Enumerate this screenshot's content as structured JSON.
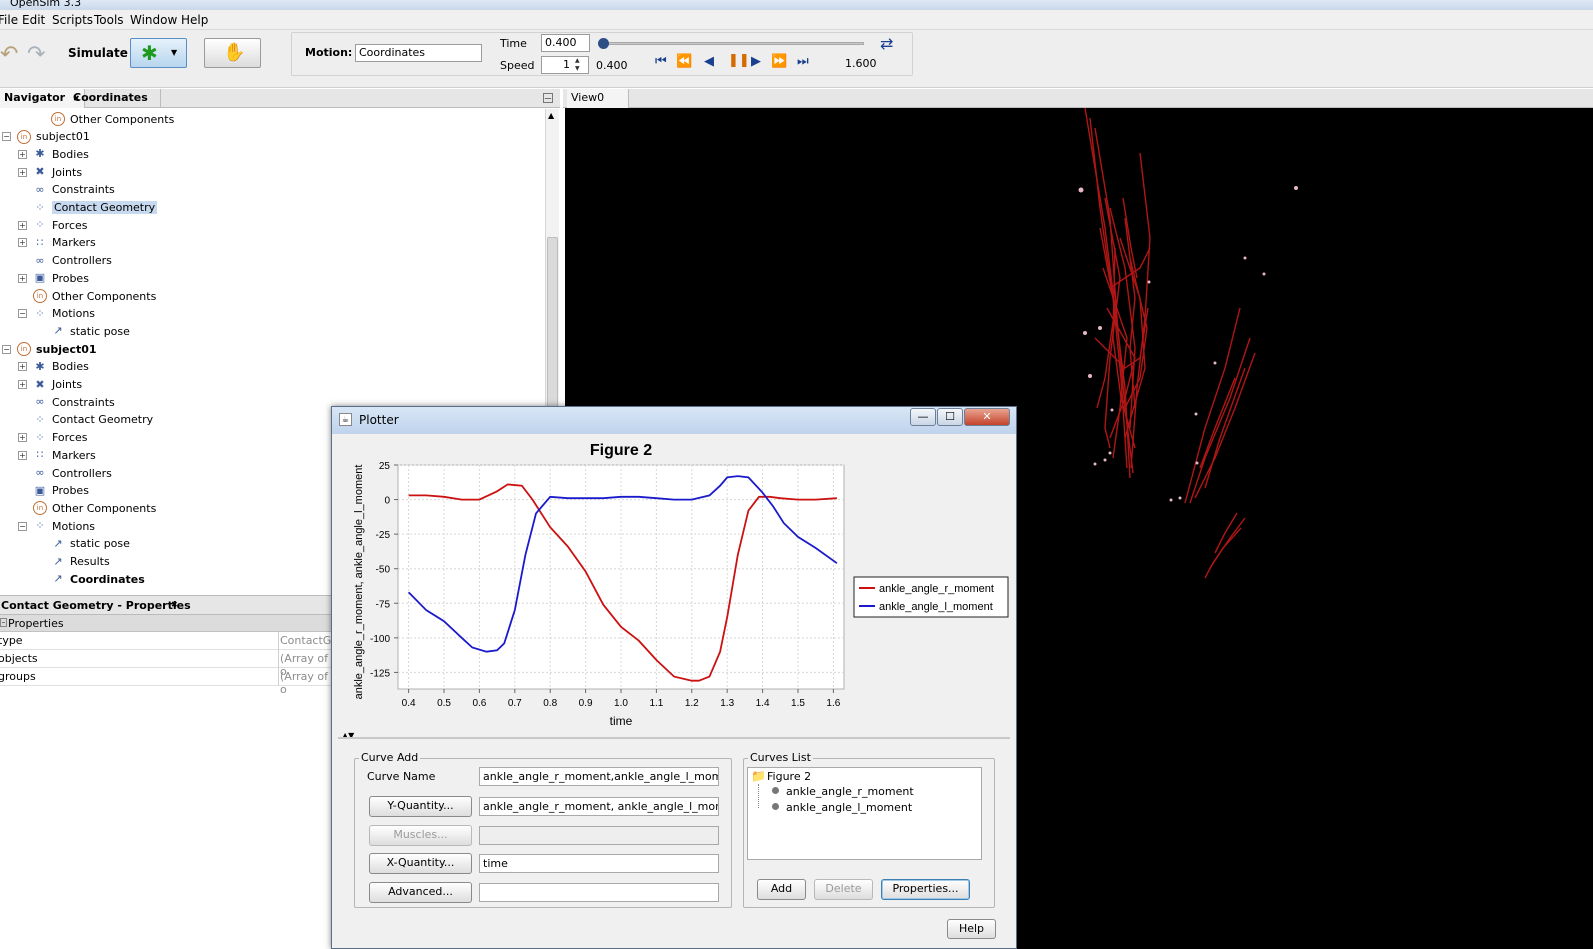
{
  "window_title": "OpenSim 3.3",
  "menu": [
    "File",
    "Edit",
    "Scripts",
    "Tools",
    "Window",
    "Help"
  ],
  "toolbar": {
    "simulate_label": "Simulate",
    "motion_label": "Motion:",
    "motion_value": "Coordinates",
    "time_label": "Time",
    "time_value": "0.400",
    "speed_label": "Speed",
    "speed_value": "1",
    "speed_readout": "0.400",
    "end_time": "1.600",
    "time_slider_fraction": 0.0
  },
  "navigator": {
    "tabs": [
      "Navigator",
      "Coordinates"
    ],
    "tree": [
      {
        "label": "Other Components",
        "level": 2,
        "icon": "circle"
      },
      {
        "label": "subject01",
        "level": 0,
        "icon": "circle",
        "expanded": true
      },
      {
        "label": "Bodies",
        "level": 1,
        "icon": "bodies",
        "expander": "+"
      },
      {
        "label": "Joints",
        "level": 1,
        "icon": "joints",
        "expander": "+"
      },
      {
        "label": "Constraints",
        "level": 1,
        "icon": "constraints"
      },
      {
        "label": "Contact Geometry",
        "level": 1,
        "icon": "contact",
        "selected": true
      },
      {
        "label": "Forces",
        "level": 1,
        "icon": "forces",
        "expander": "+"
      },
      {
        "label": "Markers",
        "level": 1,
        "icon": "markers",
        "expander": "+"
      },
      {
        "label": "Controllers",
        "level": 1,
        "icon": "controllers"
      },
      {
        "label": "Probes",
        "level": 1,
        "icon": "probes",
        "expander": "+"
      },
      {
        "label": "Other Components",
        "level": 1,
        "icon": "circle"
      },
      {
        "label": "Motions",
        "level": 1,
        "icon": "motions",
        "expander": "-"
      },
      {
        "label": "static pose",
        "level": 2,
        "icon": "motion"
      },
      {
        "label": "subject01",
        "level": 0,
        "icon": "circle",
        "expanded": true,
        "bold": true
      },
      {
        "label": "Bodies",
        "level": 1,
        "icon": "bodies",
        "expander": "+"
      },
      {
        "label": "Joints",
        "level": 1,
        "icon": "joints",
        "expander": "+"
      },
      {
        "label": "Constraints",
        "level": 1,
        "icon": "constraints"
      },
      {
        "label": "Contact Geometry",
        "level": 1,
        "icon": "contact"
      },
      {
        "label": "Forces",
        "level": 1,
        "icon": "forces",
        "expander": "+"
      },
      {
        "label": "Markers",
        "level": 1,
        "icon": "markers",
        "expander": "+"
      },
      {
        "label": "Controllers",
        "level": 1,
        "icon": "controllers"
      },
      {
        "label": "Probes",
        "level": 1,
        "icon": "probes"
      },
      {
        "label": "Other Components",
        "level": 1,
        "icon": "circle"
      },
      {
        "label": "Motions",
        "level": 1,
        "icon": "motions",
        "expander": "-"
      },
      {
        "label": "static pose",
        "level": 2,
        "icon": "motion"
      },
      {
        "label": "Results",
        "level": 2,
        "icon": "motion"
      },
      {
        "label": "Coordinates",
        "level": 2,
        "icon": "motion",
        "bold": true
      }
    ]
  },
  "properties": {
    "tab_title": "Contact Geometry - Properties",
    "section": "Properties",
    "rows": [
      {
        "name": "type",
        "value": "ContactGe"
      },
      {
        "name": "objects",
        "value": "(Array of o"
      },
      {
        "name": "groups",
        "value": "(Array of o"
      }
    ]
  },
  "view": {
    "tab": "View0"
  },
  "plotter": {
    "title": "Plotter",
    "chart_data": {
      "type": "line",
      "title": "Figure 2",
      "xlabel": "time",
      "ylabel": "ankle_angle_r_moment, ankle_angle_l_moment",
      "xlim": [
        0.37,
        1.63
      ],
      "ylim": [
        -137,
        25
      ],
      "xticks": [
        "0.4",
        "0.5",
        "0.6",
        "0.7",
        "0.8",
        "0.9",
        "1.0",
        "1.1",
        "1.2",
        "1.3",
        "1.4",
        "1.5",
        "1.6"
      ],
      "yticks": [
        "25",
        "0",
        "-25",
        "-50",
        "-75",
        "-100",
        "-125"
      ],
      "legend_position": "right",
      "grid": true,
      "series": [
        {
          "name": "ankle_angle_r_moment",
          "color": "#cc1111",
          "x": [
            0.4,
            0.45,
            0.5,
            0.55,
            0.6,
            0.65,
            0.68,
            0.72,
            0.75,
            0.78,
            0.8,
            0.85,
            0.9,
            0.95,
            1.0,
            1.05,
            1.1,
            1.15,
            1.2,
            1.22,
            1.25,
            1.28,
            1.3,
            1.33,
            1.36,
            1.39,
            1.42,
            1.45,
            1.5,
            1.55,
            1.61
          ],
          "y": [
            3,
            3,
            2,
            0,
            0,
            6,
            11,
            10,
            0,
            -12,
            -20,
            -34,
            -52,
            -76,
            -92,
            -102,
            -116,
            -128,
            -131,
            -131,
            -128,
            -110,
            -85,
            -40,
            -8,
            2,
            2,
            1,
            0,
            0,
            1
          ]
        },
        {
          "name": "ankle_angle_l_moment",
          "color": "#1a1acc",
          "x": [
            0.4,
            0.45,
            0.5,
            0.55,
            0.58,
            0.62,
            0.65,
            0.67,
            0.7,
            0.73,
            0.76,
            0.8,
            0.85,
            0.9,
            0.95,
            1.0,
            1.05,
            1.1,
            1.15,
            1.2,
            1.25,
            1.28,
            1.3,
            1.33,
            1.36,
            1.4,
            1.43,
            1.46,
            1.5,
            1.55,
            1.61
          ],
          "y": [
            -67,
            -80,
            -88,
            -100,
            -107,
            -110,
            -109,
            -104,
            -80,
            -40,
            -10,
            2,
            1,
            1,
            1,
            2,
            2,
            1,
            0,
            0,
            3,
            10,
            16,
            17,
            16,
            5,
            -5,
            -17,
            -27,
            -35,
            -46
          ]
        }
      ]
    },
    "curve_add": {
      "legend": "Curve Add",
      "curve_name_label": "Curve Name",
      "curve_name_value": "ankle_angle_r_moment,ankle_angle_l_moment",
      "y_quantity_button": "Y-Quantity...",
      "y_quantity_value": "ankle_angle_r_moment, ankle_angle_l_moment",
      "muscles_button": "Muscles...",
      "muscles_value": "",
      "x_quantity_button": "X-Quantity...",
      "x_quantity_value": "time",
      "advanced_button": "Advanced...",
      "advanced_value": ""
    },
    "curves_list": {
      "legend": "Curves List",
      "root": "Figure 2",
      "items": [
        "ankle_angle_r_moment",
        "ankle_angle_l_moment"
      ],
      "add_button": "Add",
      "delete_button": "Delete",
      "properties_button": "Properties..."
    },
    "help_button": "Help"
  }
}
